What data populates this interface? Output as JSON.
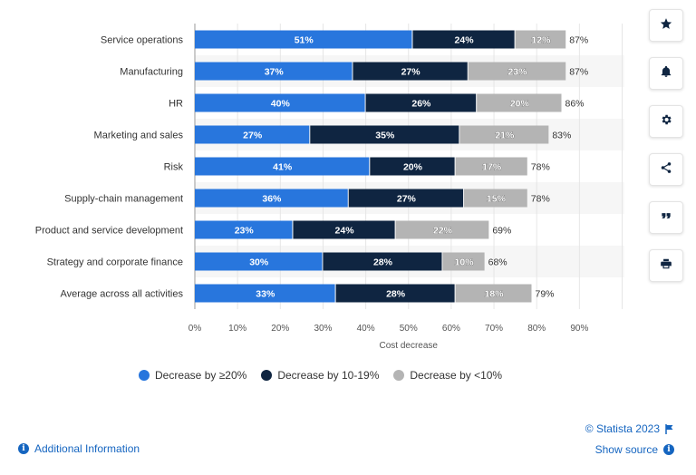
{
  "colors": {
    "series1": "#2876dd",
    "series2": "#0f2541",
    "series3": "#b4b4b4",
    "link": "#1565c0"
  },
  "sidebar_icons": [
    "star-icon",
    "bell-icon",
    "gear-icon",
    "share-icon",
    "quote-icon",
    "print-icon"
  ],
  "footer": {
    "copyright": "© Statista 2023",
    "show_source": "Show source",
    "additional_info": "Additional Information"
  },
  "chart_data": {
    "type": "bar",
    "orientation": "horizontal",
    "stacked": true,
    "categories": [
      "Service operations",
      "Manufacturing",
      "HR",
      "Marketing and sales",
      "Risk",
      "Supply-chain management",
      "Product and service development",
      "Strategy and corporate finance",
      "Average across all activities"
    ],
    "series": [
      {
        "name": "Decrease by ≥20%",
        "values": [
          51,
          37,
          40,
          27,
          41,
          36,
          23,
          30,
          33
        ]
      },
      {
        "name": "Decrease by 10-19%",
        "values": [
          24,
          27,
          26,
          35,
          20,
          27,
          24,
          28,
          28
        ]
      },
      {
        "name": "Decrease by <10%",
        "values": [
          12,
          23,
          20,
          21,
          17,
          15,
          22,
          10,
          18
        ]
      }
    ],
    "totals": [
      87,
      87,
      86,
      83,
      78,
      78,
      69,
      68,
      79
    ],
    "xlabel": "Cost decrease",
    "xlim": [
      0,
      100
    ],
    "xticks": [
      "0%",
      "10%",
      "20%",
      "30%",
      "40%",
      "50%",
      "60%",
      "70%",
      "80%",
      "90%"
    ],
    "legend_position": "bottom",
    "grid": true
  }
}
